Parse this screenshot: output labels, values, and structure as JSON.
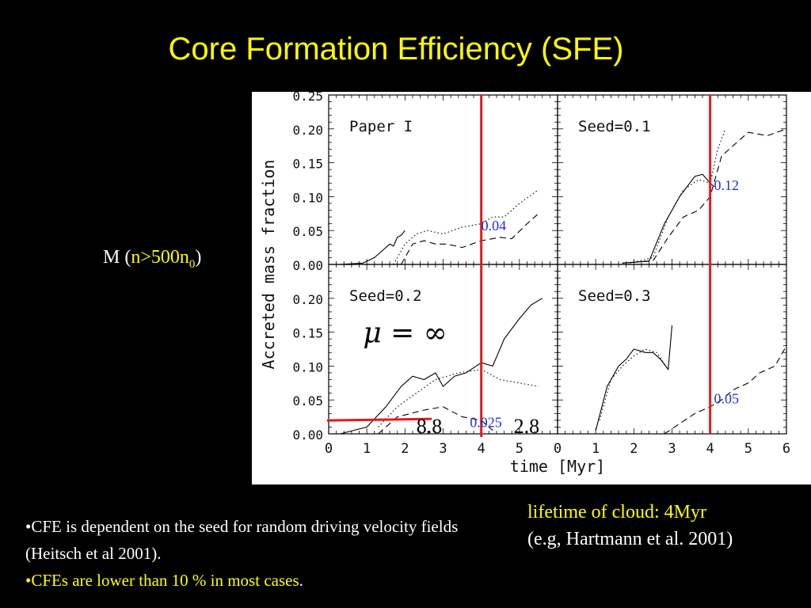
{
  "title": "Core Formation Efficiency (SFE)",
  "mass_label": {
    "prefix": "M (",
    "condition": "n>500n",
    "subscript": "0",
    "suffix": ")"
  },
  "bullets": [
    {
      "lead": "•",
      "text": "CFE is dependent on the seed for random driving velocity fields (Heitsch et al 2001)."
    },
    {
      "lead": "•",
      "text": "CFEs are  lower than 10 % in most cases",
      "tail": "."
    }
  ],
  "lifetime": {
    "line1": "lifetime of cloud: 4Myr",
    "line2": "(e.g, Hartmann et al. 2001)"
  },
  "chart_data": {
    "type": "line",
    "ylabel": "Accreted mass fraction",
    "xlabel": "time [Myr]",
    "xlim": [
      0,
      6
    ],
    "ylim": [
      0,
      0.25
    ],
    "x_ticks": [
      "0",
      "1",
      "2",
      "3",
      "4",
      "5",
      "0",
      "1",
      "2",
      "3",
      "4",
      "5",
      "6"
    ],
    "y_ticks_top": [
      "0.25",
      "0.20",
      "0.15",
      "0.10",
      "0.05",
      "0.00"
    ],
    "y_ticks_bottom": [
      "0.20",
      "0.15",
      "0.10",
      "0.05",
      "0.00"
    ],
    "lifetime_marker_x": 4,
    "panels": [
      {
        "label": "Paper I",
        "annotation": "0.04",
        "solid": [
          [
            0.3,
            0
          ],
          [
            0.9,
            0.002
          ],
          [
            1.2,
            0.01
          ],
          [
            1.4,
            0.02
          ],
          [
            1.6,
            0.03
          ],
          [
            1.7,
            0.027
          ],
          [
            1.8,
            0.04
          ],
          [
            1.9,
            0.043
          ],
          [
            2.0,
            0.05
          ]
        ],
        "dotted": [
          [
            1.7,
            0
          ],
          [
            2.0,
            0.03
          ],
          [
            2.3,
            0.045
          ],
          [
            2.6,
            0.05
          ],
          [
            3.0,
            0.045
          ],
          [
            3.5,
            0.055
          ],
          [
            4.0,
            0.06
          ],
          [
            4.3,
            0.07
          ],
          [
            4.6,
            0.07
          ],
          [
            5.0,
            0.09
          ],
          [
            5.5,
            0.11
          ]
        ],
        "dashed": [
          [
            1.9,
            0
          ],
          [
            2.2,
            0.03
          ],
          [
            2.5,
            0.035
          ],
          [
            2.8,
            0.03
          ],
          [
            3.1,
            0.03
          ],
          [
            3.5,
            0.025
          ],
          [
            4.0,
            0.035
          ],
          [
            4.5,
            0.04
          ],
          [
            4.8,
            0.038
          ],
          [
            5.2,
            0.06
          ],
          [
            5.5,
            0.075
          ]
        ]
      },
      {
        "label": "Seed=0.1",
        "annotation": "0.12",
        "solid": [
          [
            1.7,
            0.002
          ],
          [
            2.4,
            0.005
          ],
          [
            2.8,
            0.06
          ],
          [
            3.2,
            0.1
          ],
          [
            3.6,
            0.13
          ],
          [
            3.8,
            0.133
          ],
          [
            4.0,
            0.12
          ],
          [
            4.1,
            0.115
          ]
        ],
        "dotted": [
          [
            1.9,
            0.002
          ],
          [
            2.5,
            0.01
          ],
          [
            2.9,
            0.07
          ],
          [
            3.3,
            0.11
          ],
          [
            3.7,
            0.125
          ],
          [
            4.0,
            0.12
          ],
          [
            4.2,
            0.17
          ],
          [
            4.4,
            0.2
          ]
        ],
        "dashed": [
          [
            1.7,
            0.002
          ],
          [
            2.5,
            0.005
          ],
          [
            2.9,
            0.04
          ],
          [
            3.3,
            0.07
          ],
          [
            3.7,
            0.08
          ],
          [
            4.0,
            0.1
          ],
          [
            4.3,
            0.16
          ],
          [
            4.7,
            0.18
          ],
          [
            5.0,
            0.195
          ],
          [
            5.5,
            0.19
          ],
          [
            6.0,
            0.2
          ]
        ]
      },
      {
        "label": "Seed=0.2",
        "annotation": "0.025",
        "mu_label": "μ = ∞",
        "left_value": "8.8",
        "right_value": "2.8",
        "solid": [
          [
            0.3,
            0
          ],
          [
            1.0,
            0.01
          ],
          [
            1.5,
            0.04
          ],
          [
            1.9,
            0.07
          ],
          [
            2.2,
            0.085
          ],
          [
            2.5,
            0.08
          ],
          [
            2.8,
            0.09
          ],
          [
            3.0,
            0.07
          ],
          [
            3.3,
            0.085
          ],
          [
            3.6,
            0.09
          ],
          [
            4.0,
            0.105
          ],
          [
            4.3,
            0.1
          ],
          [
            4.6,
            0.14
          ],
          [
            5.0,
            0.17
          ],
          [
            5.3,
            0.19
          ],
          [
            5.6,
            0.2
          ]
        ],
        "dotted": [
          [
            1.3,
            0.01
          ],
          [
            1.8,
            0.04
          ],
          [
            2.3,
            0.06
          ],
          [
            2.8,
            0.08
          ],
          [
            3.4,
            0.09
          ],
          [
            4.0,
            0.095
          ],
          [
            4.5,
            0.08
          ],
          [
            5.0,
            0.075
          ],
          [
            5.5,
            0.07
          ]
        ],
        "dashed": [
          [
            1.3,
            0
          ],
          [
            1.8,
            0.025
          ],
          [
            2.5,
            0.035
          ],
          [
            3.0,
            0.04
          ],
          [
            3.5,
            0.025
          ],
          [
            4.0,
            0.02
          ],
          [
            4.3,
            0.005
          ]
        ]
      },
      {
        "label": "Seed=0.3",
        "annotation": "0.05",
        "solid": [
          [
            1.0,
            0.005
          ],
          [
            1.3,
            0.07
          ],
          [
            1.6,
            0.1
          ],
          [
            1.8,
            0.11
          ],
          [
            2.0,
            0.125
          ],
          [
            2.3,
            0.12
          ],
          [
            2.5,
            0.12
          ],
          [
            2.7,
            0.11
          ],
          [
            2.9,
            0.095
          ],
          [
            3.0,
            0.16
          ]
        ],
        "dotted": [
          [
            1.1,
            0.02
          ],
          [
            1.4,
            0.08
          ],
          [
            1.7,
            0.1
          ],
          [
            2.0,
            0.115
          ],
          [
            2.3,
            0.125
          ],
          [
            2.6,
            0.12
          ],
          [
            2.9,
            0.095
          ]
        ],
        "dashed": [
          [
            2.8,
            0
          ],
          [
            3.2,
            0.015
          ],
          [
            3.6,
            0.03
          ],
          [
            4.0,
            0.04
          ],
          [
            4.3,
            0.05
          ],
          [
            4.6,
            0.065
          ],
          [
            5.0,
            0.075
          ],
          [
            5.3,
            0.09
          ],
          [
            5.7,
            0.1
          ],
          [
            6.0,
            0.13
          ]
        ]
      }
    ]
  }
}
